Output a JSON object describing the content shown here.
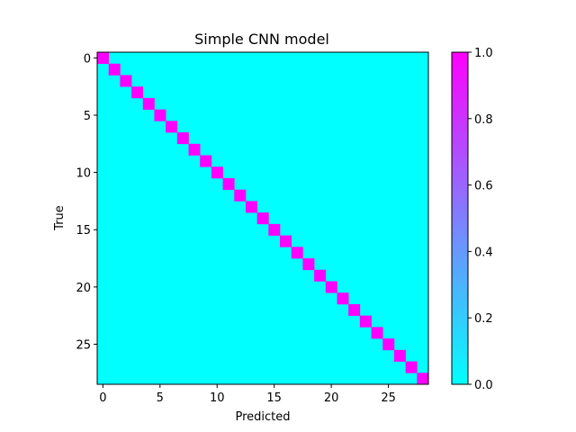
{
  "chart_data": {
    "type": "heatmap",
    "title": "Simple CNN model",
    "xlabel": "Predicted",
    "ylabel": "True",
    "n_classes": 29,
    "diagonal_value": 1.0,
    "off_diagonal_value": 0.0,
    "x_ticks": [
      0,
      5,
      10,
      15,
      20,
      25
    ],
    "y_ticks": [
      0,
      5,
      10,
      15,
      20,
      25
    ],
    "colormap": "cool",
    "colormap_range": [
      "#00ffff",
      "#ff00ff"
    ],
    "colorbar": {
      "vmin": 0.0,
      "vmax": 1.0,
      "ticks": [
        "0.0",
        "0.2",
        "0.4",
        "0.6",
        "0.8",
        "1.0"
      ]
    },
    "grid": false
  }
}
